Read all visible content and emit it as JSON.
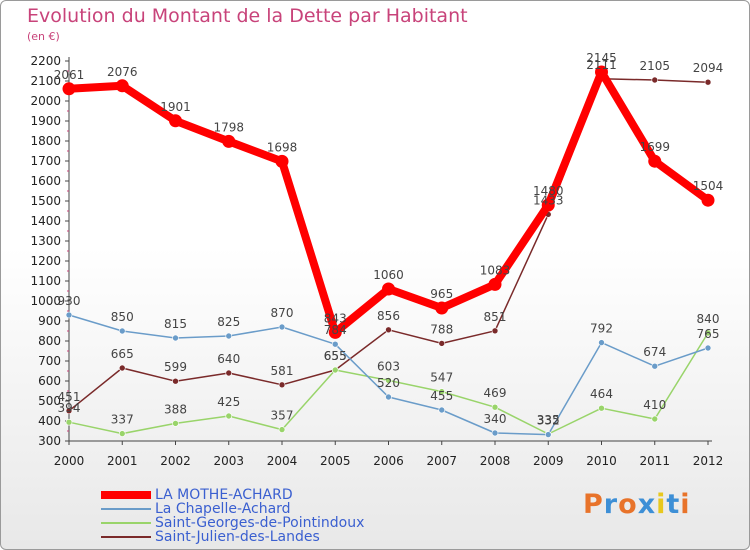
{
  "title": "Evolution du Montant de la Dette par Habitant",
  "unit": "(en €)",
  "logo": {
    "text": "Proxiti",
    "colors": [
      "#e8732a",
      "#3d8fd6",
      "#e8732a",
      "#3d8fd6",
      "#e8c81e",
      "#3d8fd6",
      "#e8732a"
    ]
  },
  "legend": [
    {
      "label": "LA MOTHE-ACHARD"
    },
    {
      "label": "La Chapelle-Achard"
    },
    {
      "label": "Saint-Georges-de-Pointindoux"
    },
    {
      "label": "Saint-Julien-des-Landes"
    }
  ],
  "chart_data": {
    "type": "line",
    "title": "Evolution du Montant de la Dette par Habitant",
    "xlabel": "",
    "ylabel": "(en €)",
    "x": [
      2000,
      2001,
      2002,
      2003,
      2004,
      2005,
      2006,
      2007,
      2008,
      2009,
      2010,
      2011,
      2012
    ],
    "ylim": [
      300,
      2200
    ],
    "yticks": [
      300,
      400,
      500,
      600,
      700,
      800,
      900,
      1000,
      1100,
      1200,
      1300,
      1400,
      1500,
      1600,
      1700,
      1800,
      1900,
      2000,
      2100,
      2200
    ],
    "grid": false,
    "legend_position": "bottom-left",
    "series": [
      {
        "name": "LA MOTHE-ACHARD",
        "color": "#ff0000",
        "emphasis": true,
        "values": [
          2061,
          2076,
          1901,
          1798,
          1698,
          843,
          1060,
          965,
          1083,
          1480,
          2145,
          1699,
          1504
        ],
        "labels": [
          "2061",
          "2076",
          "1901",
          "1798",
          "1698",
          "843",
          "1060",
          "965",
          "1083",
          "1480",
          "2145",
          "1699",
          "1504"
        ]
      },
      {
        "name": "La Chapelle-Achard",
        "color": "#6a9cc9",
        "values": [
          930,
          850,
          815,
          825,
          870,
          784,
          520,
          455,
          340,
          332,
          792,
          674,
          765
        ],
        "labels": [
          "930",
          "850",
          "815",
          "825",
          "870",
          "784",
          "520",
          "455",
          "340",
          "332",
          "792",
          "674",
          "765"
        ]
      },
      {
        "name": "Saint-Georges-de-Pointindoux",
        "color": "#99d46a",
        "values": [
          394,
          337,
          388,
          425,
          357,
          655,
          603,
          547,
          469,
          335,
          464,
          410,
          840
        ],
        "labels": [
          "394",
          "337",
          "388",
          "425",
          "357",
          "655",
          "603",
          "547",
          "469",
          "335",
          "464",
          "410",
          "840"
        ]
      },
      {
        "name": "Saint-Julien-des-Landes",
        "color": "#7a2a2a",
        "values": [
          451,
          665,
          599,
          640,
          581,
          655,
          856,
          788,
          851,
          1433,
          2111,
          2105,
          2094
        ],
        "labels": [
          "451",
          "665",
          "599",
          "640",
          "581",
          "655",
          "856",
          "788",
          "851",
          "1433",
          "2111",
          "2105",
          "2094"
        ]
      }
    ]
  }
}
